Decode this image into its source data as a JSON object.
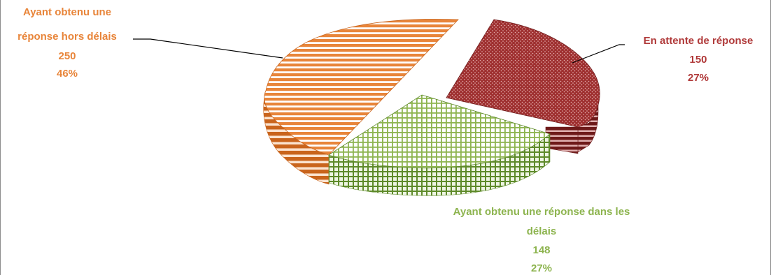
{
  "chart_data": {
    "type": "pie",
    "style": "3d-exploded",
    "title": "",
    "slices": [
      {
        "label_lines": [
          "Ayant obtenu une",
          "réponse hors délais"
        ],
        "value": 250,
        "percent": "46%",
        "color": "#E8853A",
        "pattern": "horizontal-stripes"
      },
      {
        "label_lines": [
          "En attente de réponse"
        ],
        "value": 150,
        "percent": "27%",
        "color": "#9E2F2F",
        "pattern": "dots"
      },
      {
        "label_lines": [
          "Ayant obtenu une réponse dans les",
          "délais"
        ],
        "value": 148,
        "percent": "27%",
        "color": "#8DB44F",
        "pattern": "grid"
      }
    ]
  }
}
